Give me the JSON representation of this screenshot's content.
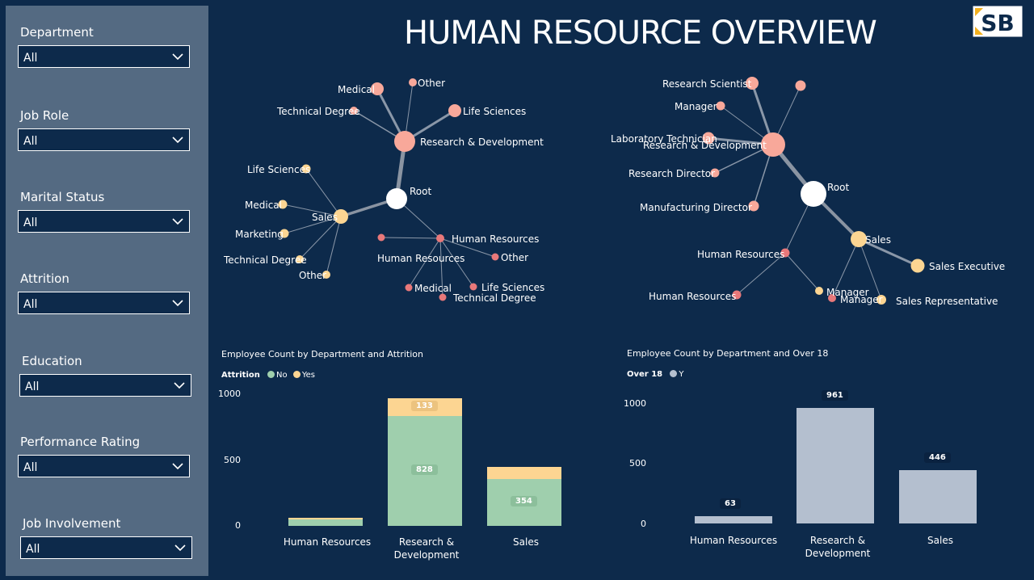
{
  "title": "HUMAN RESOURCE OVERVIEW",
  "logo": {
    "text": "SB",
    "icon": "sb-logo-icon"
  },
  "filters": [
    {
      "label": "Department",
      "value": "All"
    },
    {
      "label": "Job Role",
      "value": "All"
    },
    {
      "label": "Marital Status",
      "value": "All"
    },
    {
      "label": "Attrition",
      "value": "All"
    },
    {
      "label": "Education",
      "value": "All"
    },
    {
      "label": "Performance Rating",
      "value": "All"
    },
    {
      "label": "Job Involvement",
      "value": "All"
    }
  ],
  "colors": {
    "background": "#0d2a4b",
    "sidebar": "#546a82",
    "node_root": "#ffffff",
    "node_rd": "#f8a89a",
    "node_sales": "#fcd592",
    "node_hr": "#e8787a",
    "bar_no": "#9fcfad",
    "bar_yes": "#fcd592",
    "bar_over18": "#b4bfcf"
  },
  "tree_left": {
    "root": "Root",
    "departments": [
      "Research & Development",
      "Sales",
      "Human Resources"
    ],
    "rd_children": [
      "Medical",
      "Other",
      "Life Sciences",
      "Technical Degree"
    ],
    "sales_children": [
      "Life Sciences",
      "Medical",
      "Marketing",
      "Technical Degree",
      "Other"
    ],
    "hr_children": [
      "Human Resources",
      "Other",
      "Medical",
      "Life Sciences",
      "Technical Degree"
    ]
  },
  "tree_right": {
    "root": "Root",
    "departments": [
      "Research & Development",
      "Sales",
      "Human Resources"
    ],
    "rd_children": [
      "Research Scientist",
      "Manager",
      "Laboratory Technician",
      "Research Director",
      "Manufacturing Director"
    ],
    "sales_children": [
      "Sales Executive",
      "Sales Representative",
      "Manager"
    ],
    "hr_children": [
      "Human Resources",
      "Manager"
    ]
  },
  "chart_data": [
    {
      "type": "bar",
      "title": "Employee Count by Department and Attrition",
      "legend_title": "Attrition",
      "categories": [
        "Human Resources",
        "Research & Development",
        "Sales"
      ],
      "stacked": true,
      "series": [
        {
          "name": "No",
          "values": [
            51,
            828,
            354
          ],
          "color": "#9fcfad"
        },
        {
          "name": "Yes",
          "values": [
            12,
            133,
            92
          ],
          "color": "#fcd592"
        }
      ],
      "data_labels": {
        "Research & Development": [
          "828",
          "133"
        ],
        "Sales": [
          "354"
        ]
      },
      "yticks": [
        "1000",
        "500",
        "0"
      ],
      "ylim": [
        0,
        1000
      ],
      "grid": false,
      "legend_position": "top-left"
    },
    {
      "type": "bar",
      "title": "Employee Count by Department and Over 18",
      "legend_title": "Over 18",
      "categories": [
        "Human Resources",
        "Research & Development",
        "Sales"
      ],
      "series": [
        {
          "name": "Y",
          "values": [
            63,
            961,
            446
          ],
          "color": "#b4bfcf"
        }
      ],
      "data_labels": [
        "63",
        "961",
        "446"
      ],
      "yticks": [
        "1000",
        "500",
        "0"
      ],
      "ylim": [
        0,
        1000
      ],
      "grid": false,
      "legend_position": "top-left"
    }
  ],
  "categories_display": [
    "Human Resources",
    "Research &\nDevelopment",
    "Sales"
  ]
}
